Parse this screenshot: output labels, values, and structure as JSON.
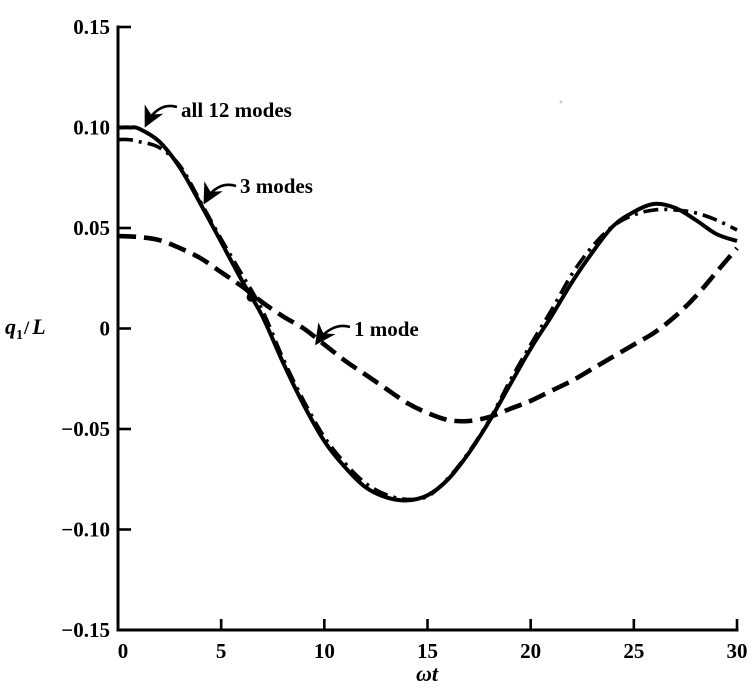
{
  "chart_data": {
    "type": "line",
    "title": "",
    "xlabel": "ωt",
    "ylabel": "q1/L",
    "ylabel_parts": {
      "base": "q",
      "sub": "1",
      "slash": "/",
      "denom": "L"
    },
    "xlim": [
      0,
      30
    ],
    "ylim": [
      -0.15,
      0.15
    ],
    "grid": false,
    "legend_position": "inline-annotations",
    "ink_color": "#000000",
    "background_color": "#ffffff",
    "xticks": [
      {
        "v": 0,
        "label": "0"
      },
      {
        "v": 5,
        "label": "5"
      },
      {
        "v": 10,
        "label": "10"
      },
      {
        "v": 15,
        "label": "15"
      },
      {
        "v": 20,
        "label": "20"
      },
      {
        "v": 25,
        "label": "25"
      },
      {
        "v": 30,
        "label": "30"
      }
    ],
    "yticks": [
      {
        "v": 0.15,
        "label": "0.15"
      },
      {
        "v": 0.1,
        "label": "0.10"
      },
      {
        "v": 0.05,
        "label": "0.05"
      },
      {
        "v": 0,
        "label": "0"
      },
      {
        "v": -0.05,
        "label": "−0.05"
      },
      {
        "v": -0.1,
        "label": "−0.10"
      },
      {
        "v": -0.15,
        "label": "−0.15"
      }
    ],
    "series": [
      {
        "name": "all 12 modes",
        "style": "solid",
        "x": [
          0,
          0.6,
          1,
          2,
          3,
          4,
          5,
          6,
          7,
          8,
          9,
          10,
          11,
          12,
          13,
          14,
          15,
          16,
          17,
          18,
          19,
          20,
          21,
          22,
          23,
          24,
          25,
          26,
          27,
          28,
          29,
          30
        ],
        "y": [
          0.1,
          0.1,
          0.0995,
          0.093,
          0.08,
          0.062,
          0.043,
          0.024,
          0.006,
          -0.017,
          -0.038,
          -0.056,
          -0.069,
          -0.079,
          -0.084,
          -0.0855,
          -0.083,
          -0.075,
          -0.062,
          -0.046,
          -0.028,
          -0.01,
          0.006,
          0.023,
          0.038,
          0.051,
          0.058,
          0.062,
          0.06,
          0.054,
          0.047,
          0.0435
        ]
      },
      {
        "name": "3 modes",
        "style": "dashdot",
        "x": [
          0,
          0.5,
          1,
          2,
          3,
          4,
          5,
          6,
          7,
          8,
          9,
          10,
          11,
          12,
          13,
          14,
          15,
          16,
          17,
          18,
          19,
          20,
          21,
          22,
          23,
          24,
          25,
          26,
          27,
          28,
          29,
          30
        ],
        "y": [
          0.094,
          0.094,
          0.093,
          0.09,
          0.081,
          0.063,
          0.0445,
          0.027,
          0.009,
          -0.015,
          -0.036,
          -0.054,
          -0.067,
          -0.077,
          -0.0827,
          -0.085,
          -0.0835,
          -0.0745,
          -0.0615,
          -0.0455,
          -0.026,
          -0.008,
          0.009,
          0.027,
          0.041,
          0.051,
          0.0565,
          0.059,
          0.059,
          0.0575,
          0.054,
          0.049
        ]
      },
      {
        "name": "1 mode",
        "style": "dash",
        "x": [
          0,
          1,
          2,
          3,
          4,
          5,
          6,
          7,
          8,
          9,
          10,
          11,
          12,
          13,
          14,
          15,
          16,
          17,
          18,
          19,
          20,
          21,
          22,
          23,
          24,
          25,
          26,
          27,
          28,
          29,
          30
        ],
        "y": [
          0.046,
          0.0455,
          0.044,
          0.04,
          0.035,
          0.028,
          0.021,
          0.013,
          0.006,
          0.0,
          -0.008,
          -0.016,
          -0.023,
          -0.03,
          -0.037,
          -0.042,
          -0.0455,
          -0.046,
          -0.044,
          -0.04,
          -0.036,
          -0.031,
          -0.026,
          -0.02,
          -0.014,
          -0.008,
          -0.002,
          0.006,
          0.016,
          0.028,
          0.04
        ]
      }
    ],
    "crossing_marker": {
      "x": 6.45,
      "y": 0.0155
    }
  }
}
